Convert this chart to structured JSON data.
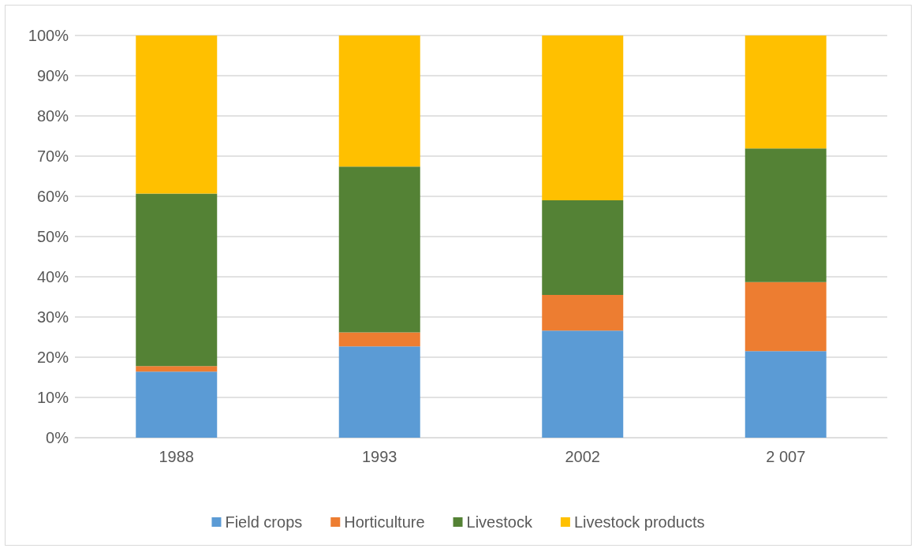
{
  "chart_data": {
    "type": "bar",
    "stacked": true,
    "categories": [
      "1988",
      "1993",
      "2002",
      "2 007"
    ],
    "series": [
      {
        "name": "Field crops",
        "color": "#5b9bd5",
        "values": [
          16.4,
          22.7,
          26.6,
          21.5
        ]
      },
      {
        "name": "Horticulture",
        "color": "#ed7d31",
        "values": [
          1.4,
          3.5,
          8.9,
          17.2
        ]
      },
      {
        "name": "Livestock",
        "color": "#548235",
        "values": [
          42.9,
          41.2,
          23.5,
          33.2
        ]
      },
      {
        "name": "Livestock products",
        "color": "#ffc000",
        "values": [
          39.3,
          32.6,
          41.0,
          28.1
        ]
      }
    ],
    "ylim": [
      0,
      100
    ],
    "yticks": [
      {
        "value": 0,
        "label": "0%"
      },
      {
        "value": 10,
        "label": "10%"
      },
      {
        "value": 20,
        "label": "20%"
      },
      {
        "value": 30,
        "label": "30%"
      },
      {
        "value": 40,
        "label": "40%"
      },
      {
        "value": 50,
        "label": "50%"
      },
      {
        "value": 60,
        "label": "60%"
      },
      {
        "value": 70,
        "label": "70%"
      },
      {
        "value": 80,
        "label": "80%"
      },
      {
        "value": 90,
        "label": "90%"
      },
      {
        "value": 100,
        "label": "100%"
      }
    ],
    "grid": "y",
    "legend": "bottom"
  }
}
